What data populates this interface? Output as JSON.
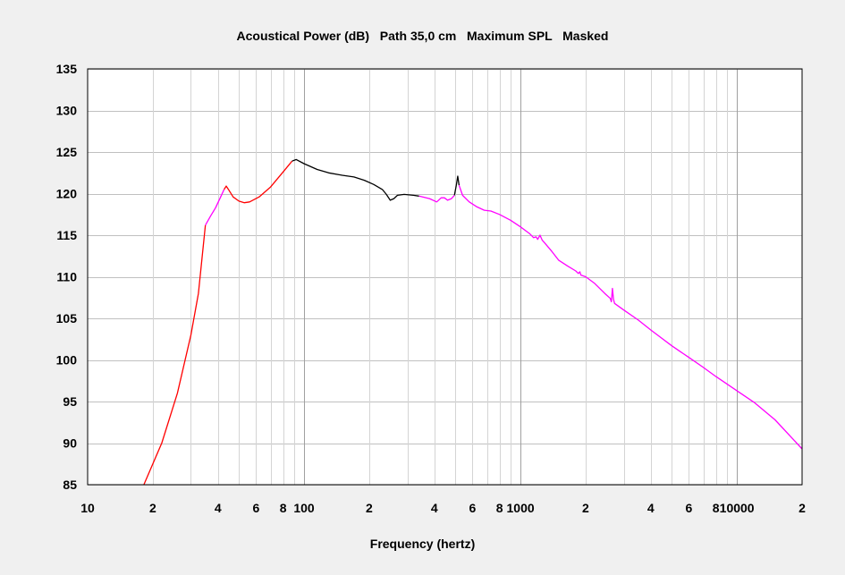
{
  "chart_data": {
    "type": "line",
    "title": "Acoustical Power (dB)   Path 35,0 cm   Maximum SPL   Masked",
    "xlabel": "Frequency (hertz)",
    "ylabel": "",
    "x_scale": "log",
    "xlim": [
      10,
      20000
    ],
    "ylim": [
      85,
      135
    ],
    "grid": true,
    "y_ticks": [
      "85",
      "90",
      "95",
      "100",
      "105",
      "110",
      "115",
      "120",
      "125",
      "130",
      "135"
    ],
    "x_ticks": [
      {
        "value": 10,
        "label": "10"
      },
      {
        "value": 20,
        "label": "2"
      },
      {
        "value": 40,
        "label": "4"
      },
      {
        "value": 60,
        "label": "6"
      },
      {
        "value": 80,
        "label": "8"
      },
      {
        "value": 100,
        "label": "100"
      },
      {
        "value": 200,
        "label": "2"
      },
      {
        "value": 400,
        "label": "4"
      },
      {
        "value": 600,
        "label": "6"
      },
      {
        "value": 800,
        "label": "8"
      },
      {
        "value": 1000,
        "label": "1000"
      },
      {
        "value": 2000,
        "label": "2"
      },
      {
        "value": 4000,
        "label": "4"
      },
      {
        "value": 6000,
        "label": "6"
      },
      {
        "value": 8000,
        "label": "8"
      },
      {
        "value": 10000,
        "label": "10000"
      },
      {
        "value": 20000,
        "label": "2"
      }
    ],
    "series": [
      {
        "color": "#ff0000",
        "points": [
          [
            18.2,
            85
          ],
          [
            22,
            90
          ],
          [
            26,
            96
          ],
          [
            30,
            103
          ],
          [
            32.5,
            108
          ],
          [
            35,
            116.2
          ]
        ]
      },
      {
        "color": "#ff00ff",
        "points": [
          [
            35,
            116.2
          ],
          [
            37,
            117.3
          ],
          [
            39,
            118.3
          ],
          [
            41,
            119.5
          ],
          [
            42.7,
            120.5
          ]
        ]
      },
      {
        "color": "#ff0000",
        "points": [
          [
            42.7,
            120.5
          ],
          [
            43.7,
            120.9
          ],
          [
            45,
            120.4
          ],
          [
            47,
            119.6
          ],
          [
            50,
            119.1
          ],
          [
            53,
            118.9
          ],
          [
            56,
            119.0
          ],
          [
            62,
            119.6
          ],
          [
            70,
            120.8
          ],
          [
            80,
            122.6
          ],
          [
            88,
            123.9
          ]
        ]
      },
      {
        "color": "#000000",
        "points": [
          [
            88,
            123.9
          ],
          [
            92,
            124.1
          ],
          [
            100,
            123.6
          ],
          [
            115,
            122.9
          ],
          [
            130,
            122.5
          ],
          [
            150,
            122.2
          ],
          [
            170,
            122.0
          ],
          [
            190,
            121.6
          ],
          [
            210,
            121.1
          ],
          [
            230,
            120.5
          ],
          [
            240,
            119.9
          ],
          [
            250,
            119.2
          ],
          [
            260,
            119.4
          ],
          [
            270,
            119.8
          ],
          [
            290,
            119.9
          ],
          [
            320,
            119.8
          ],
          [
            340,
            119.7
          ]
        ]
      },
      {
        "color": "#ff00ff",
        "points": [
          [
            340,
            119.7
          ],
          [
            380,
            119.4
          ],
          [
            410,
            119.0
          ],
          [
            430,
            119.5
          ],
          [
            445,
            119.5
          ],
          [
            460,
            119.2
          ],
          [
            480,
            119.4
          ],
          [
            495,
            119.8
          ]
        ]
      },
      {
        "color": "#000000",
        "points": [
          [
            495,
            119.8
          ],
          [
            505,
            121.0
          ],
          [
            513,
            122.1
          ],
          [
            520,
            121.0
          ]
        ]
      },
      {
        "color": "#ff00ff",
        "points": [
          [
            520,
            121.0
          ],
          [
            540,
            119.8
          ],
          [
            580,
            119.0
          ],
          [
            630,
            118.4
          ],
          [
            680,
            118.0
          ],
          [
            730,
            117.9
          ],
          [
            800,
            117.5
          ],
          [
            900,
            116.8
          ],
          [
            1000,
            116.0
          ],
          [
            1100,
            115.2
          ],
          [
            1150,
            114.7
          ],
          [
            1180,
            114.8
          ],
          [
            1200,
            114.5
          ],
          [
            1230,
            115.0
          ],
          [
            1260,
            114.4
          ],
          [
            1300,
            114.0
          ],
          [
            1400,
            113.0
          ],
          [
            1500,
            112.0
          ],
          [
            1650,
            111.3
          ],
          [
            1800,
            110.7
          ],
          [
            1850,
            110.4
          ],
          [
            1880,
            110.6
          ],
          [
            1900,
            110.2
          ],
          [
            2000,
            110.0
          ],
          [
            2200,
            109.2
          ],
          [
            2450,
            108.0
          ],
          [
            2600,
            107.4
          ],
          [
            2630,
            107.0
          ],
          [
            2660,
            108.6
          ],
          [
            2690,
            107.3
          ],
          [
            2720,
            106.8
          ],
          [
            3000,
            106.0
          ],
          [
            3500,
            104.8
          ],
          [
            4000,
            103.6
          ],
          [
            5000,
            101.7
          ],
          [
            6000,
            100.3
          ],
          [
            7000,
            99.1
          ],
          [
            8000,
            98.0
          ],
          [
            10000,
            96.3
          ],
          [
            12000,
            94.9
          ],
          [
            15000,
            92.8
          ],
          [
            20000,
            89.3
          ]
        ]
      }
    ]
  }
}
